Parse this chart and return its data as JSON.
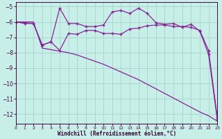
{
  "background_color": "#c8eee8",
  "grid_color": "#a8d8d0",
  "line_color": "#882299",
  "xlim": [
    0,
    23
  ],
  "ylim": [
    -12.6,
    -4.7
  ],
  "yticks": [
    -12,
    -11,
    -10,
    -9,
    -8,
    -7,
    -6,
    -5
  ],
  "xticks": [
    0,
    1,
    2,
    3,
    4,
    5,
    6,
    7,
    8,
    9,
    10,
    11,
    12,
    13,
    14,
    15,
    16,
    17,
    18,
    19,
    20,
    21,
    22,
    23
  ],
  "xlabel": "Windchill (Refroidissement éolien,°C)",
  "s1_x": [
    0,
    1,
    2,
    3,
    4,
    5,
    6,
    7,
    8,
    9,
    10,
    11,
    12,
    13,
    14,
    15,
    16,
    17,
    18,
    19,
    20,
    21,
    22,
    23
  ],
  "s1_y": [
    -6.0,
    -6.0,
    -6.0,
    -7.7,
    -7.8,
    -7.9,
    -8.0,
    -8.15,
    -8.35,
    -8.55,
    -8.75,
    -9.0,
    -9.25,
    -9.5,
    -9.75,
    -10.05,
    -10.35,
    -10.65,
    -10.95,
    -11.25,
    -11.55,
    -11.85,
    -12.1,
    -12.45
  ],
  "s2_x": [
    0,
    1,
    2,
    3,
    4,
    5,
    6,
    7,
    8,
    9,
    10,
    11,
    12,
    13,
    14,
    15,
    16,
    17,
    18,
    19,
    20,
    21,
    22,
    23
  ],
  "s2_y": [
    -6.0,
    -6.1,
    -6.1,
    -7.5,
    -7.3,
    -5.1,
    -6.1,
    -6.1,
    -6.3,
    -6.3,
    -6.2,
    -5.35,
    -5.25,
    -5.45,
    -5.1,
    -5.45,
    -6.05,
    -6.15,
    -6.1,
    -6.35,
    -6.15,
    -6.6,
    -8.1,
    -12.35
  ],
  "s3_x": [
    0,
    1,
    2,
    3,
    4,
    5,
    6,
    7,
    8,
    9,
    10,
    11,
    12,
    13,
    14,
    15,
    16,
    17,
    18,
    19,
    20,
    21,
    22,
    23
  ],
  "s3_y": [
    -6.0,
    -6.05,
    -6.1,
    -7.5,
    -7.3,
    -7.85,
    -6.75,
    -6.8,
    -6.55,
    -6.55,
    -6.75,
    -6.75,
    -6.8,
    -6.45,
    -6.4,
    -6.25,
    -6.2,
    -6.2,
    -6.3,
    -6.3,
    -6.35,
    -6.55,
    -7.85,
    -12.2
  ]
}
